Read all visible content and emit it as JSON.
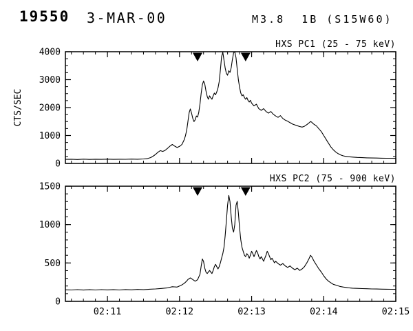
{
  "header": {
    "event_number": "19550",
    "date": "3-MAR-00",
    "flare_class": "M3.8  1B (S15W60)"
  },
  "colors": {
    "foreground": "#000000",
    "background": "#ffffff"
  },
  "chart_data": [
    {
      "type": "line",
      "title": "HXS PC1 (25 - 75 keV)",
      "ylabel": "CTS/SEC",
      "ylim": [
        0,
        4000
      ],
      "yticks": [
        0,
        1000,
        2000,
        3000,
        4000
      ],
      "y_minor_step": 250,
      "xlim": [
        25,
        300
      ],
      "x_minor_step": 10,
      "xticks": [
        {
          "t": 60,
          "label": "02:11"
        },
        {
          "t": 120,
          "label": "02:12"
        },
        {
          "t": 180,
          "label": "02:13"
        },
        {
          "t": 240,
          "label": "02:14"
        },
        {
          "t": 300,
          "label": "02:15"
        }
      ],
      "markers_t": [
        135,
        175
      ],
      "color": "#000000",
      "points": [
        [
          25,
          145
        ],
        [
          30,
          150
        ],
        [
          35,
          140
        ],
        [
          40,
          152
        ],
        [
          45,
          143
        ],
        [
          50,
          150
        ],
        [
          55,
          145
        ],
        [
          60,
          152
        ],
        [
          65,
          146
        ],
        [
          70,
          150
        ],
        [
          75,
          148
        ],
        [
          80,
          155
        ],
        [
          85,
          150
        ],
        [
          90,
          160
        ],
        [
          93,
          170
        ],
        [
          96,
          210
        ],
        [
          98,
          260
        ],
        [
          100,
          320
        ],
        [
          102,
          400
        ],
        [
          104,
          460
        ],
        [
          106,
          430
        ],
        [
          108,
          470
        ],
        [
          110,
          540
        ],
        [
          112,
          620
        ],
        [
          114,
          680
        ],
        [
          116,
          620
        ],
        [
          118,
          570
        ],
        [
          120,
          610
        ],
        [
          122,
          680
        ],
        [
          124,
          860
        ],
        [
          125,
          1000
        ],
        [
          126,
          1200
        ],
        [
          127,
          1500
        ],
        [
          128,
          1820
        ],
        [
          129,
          1950
        ],
        [
          130,
          1800
        ],
        [
          131,
          1620
        ],
        [
          132,
          1500
        ],
        [
          133,
          1560
        ],
        [
          134,
          1700
        ],
        [
          135,
          1660
        ],
        [
          136,
          1820
        ],
        [
          137,
          2120
        ],
        [
          138,
          2500
        ],
        [
          139,
          2820
        ],
        [
          140,
          2950
        ],
        [
          141,
          2840
        ],
        [
          142,
          2600
        ],
        [
          143,
          2400
        ],
        [
          144,
          2300
        ],
        [
          145,
          2420
        ],
        [
          146,
          2350
        ],
        [
          147,
          2300
        ],
        [
          148,
          2420
        ],
        [
          149,
          2520
        ],
        [
          150,
          2460
        ],
        [
          151,
          2560
        ],
        [
          152,
          2700
        ],
        [
          153,
          2920
        ],
        [
          154,
          3350
        ],
        [
          155,
          3820
        ],
        [
          156,
          3980
        ],
        [
          157,
          3700
        ],
        [
          158,
          3420
        ],
        [
          159,
          3220
        ],
        [
          160,
          3160
        ],
        [
          161,
          3320
        ],
        [
          162,
          3260
        ],
        [
          163,
          3430
        ],
        [
          164,
          3720
        ],
        [
          165,
          3960
        ],
        [
          166,
          4000
        ],
        [
          167,
          3780
        ],
        [
          168,
          3380
        ],
        [
          169,
          3000
        ],
        [
          170,
          2720
        ],
        [
          171,
          2520
        ],
        [
          172,
          2420
        ],
        [
          173,
          2460
        ],
        [
          174,
          2360
        ],
        [
          175,
          2300
        ],
        [
          176,
          2360
        ],
        [
          177,
          2260
        ],
        [
          178,
          2200
        ],
        [
          179,
          2260
        ],
        [
          180,
          2160
        ],
        [
          182,
          2060
        ],
        [
          184,
          2120
        ],
        [
          186,
          1960
        ],
        [
          188,
          1900
        ],
        [
          190,
          1960
        ],
        [
          192,
          1860
        ],
        [
          194,
          1800
        ],
        [
          196,
          1860
        ],
        [
          198,
          1760
        ],
        [
          200,
          1700
        ],
        [
          202,
          1650
        ],
        [
          204,
          1710
        ],
        [
          206,
          1610
        ],
        [
          208,
          1550
        ],
        [
          210,
          1510
        ],
        [
          212,
          1460
        ],
        [
          214,
          1410
        ],
        [
          216,
          1380
        ],
        [
          218,
          1350
        ],
        [
          220,
          1320
        ],
        [
          222,
          1300
        ],
        [
          224,
          1330
        ],
        [
          226,
          1390
        ],
        [
          228,
          1460
        ],
        [
          229,
          1500
        ],
        [
          230,
          1480
        ],
        [
          231,
          1430
        ],
        [
          232,
          1400
        ],
        [
          234,
          1340
        ],
        [
          236,
          1240
        ],
        [
          238,
          1140
        ],
        [
          240,
          1000
        ],
        [
          242,
          860
        ],
        [
          244,
          720
        ],
        [
          246,
          590
        ],
        [
          248,
          490
        ],
        [
          250,
          410
        ],
        [
          252,
          350
        ],
        [
          254,
          305
        ],
        [
          256,
          275
        ],
        [
          258,
          255
        ],
        [
          260,
          242
        ],
        [
          264,
          226
        ],
        [
          268,
          215
        ],
        [
          272,
          207
        ],
        [
          276,
          201
        ],
        [
          280,
          196
        ],
        [
          284,
          192
        ],
        [
          288,
          188
        ],
        [
          292,
          186
        ],
        [
          296,
          184
        ],
        [
          300,
          183
        ]
      ]
    },
    {
      "type": "line",
      "title": "HXS PC2 (75 - 900 keV)",
      "ylabel": "",
      "ylim": [
        0,
        1500
      ],
      "yticks": [
        0,
        500,
        1000,
        1500
      ],
      "y_minor_step": 100,
      "xlim": [
        25,
        300
      ],
      "x_minor_step": 10,
      "xticks": [
        {
          "t": 60,
          "label": "02:11"
        },
        {
          "t": 120,
          "label": "02:12"
        },
        {
          "t": 180,
          "label": "02:13"
        },
        {
          "t": 240,
          "label": "02:14"
        },
        {
          "t": 300,
          "label": "02:15"
        }
      ],
      "markers_t": [
        135,
        175
      ],
      "color": "#000000",
      "points": [
        [
          25,
          150
        ],
        [
          30,
          148
        ],
        [
          35,
          153
        ],
        [
          40,
          147
        ],
        [
          45,
          152
        ],
        [
          50,
          148
        ],
        [
          55,
          153
        ],
        [
          60,
          149
        ],
        [
          65,
          152
        ],
        [
          70,
          148
        ],
        [
          75,
          154
        ],
        [
          80,
          150
        ],
        [
          85,
          155
        ],
        [
          90,
          152
        ],
        [
          95,
          158
        ],
        [
          100,
          162
        ],
        [
          105,
          168
        ],
        [
          110,
          176
        ],
        [
          114,
          190
        ],
        [
          118,
          186
        ],
        [
          120,
          200
        ],
        [
          122,
          215
        ],
        [
          124,
          235
        ],
        [
          125,
          250
        ],
        [
          126,
          265
        ],
        [
          127,
          285
        ],
        [
          129,
          305
        ],
        [
          131,
          285
        ],
        [
          133,
          262
        ],
        [
          135,
          282
        ],
        [
          137,
          352
        ],
        [
          138,
          455
        ],
        [
          139,
          552
        ],
        [
          140,
          520
        ],
        [
          141,
          432
        ],
        [
          142,
          382
        ],
        [
          143,
          362
        ],
        [
          144,
          382
        ],
        [
          145,
          402
        ],
        [
          146,
          382
        ],
        [
          147,
          362
        ],
        [
          148,
          402
        ],
        [
          149,
          452
        ],
        [
          150,
          482
        ],
        [
          151,
          452
        ],
        [
          152,
          422
        ],
        [
          153,
          452
        ],
        [
          154,
          502
        ],
        [
          155,
          562
        ],
        [
          156,
          622
        ],
        [
          157,
          702
        ],
        [
          158,
          852
        ],
        [
          159,
          1052
        ],
        [
          160,
          1252
        ],
        [
          161,
          1380
        ],
        [
          162,
          1300
        ],
        [
          163,
          1102
        ],
        [
          164,
          952
        ],
        [
          165,
          902
        ],
        [
          166,
          1002
        ],
        [
          167,
          1252
        ],
        [
          168,
          1302
        ],
        [
          169,
          1152
        ],
        [
          170,
          952
        ],
        [
          171,
          802
        ],
        [
          172,
          702
        ],
        [
          173,
          652
        ],
        [
          174,
          602
        ],
        [
          175,
          582
        ],
        [
          176,
          622
        ],
        [
          177,
          602
        ],
        [
          178,
          562
        ],
        [
          179,
          602
        ],
        [
          180,
          652
        ],
        [
          181,
          622
        ],
        [
          182,
          582
        ],
        [
          183,
          622
        ],
        [
          184,
          662
        ],
        [
          185,
          632
        ],
        [
          186,
          582
        ],
        [
          187,
          552
        ],
        [
          188,
          582
        ],
        [
          189,
          552
        ],
        [
          190,
          522
        ],
        [
          191,
          562
        ],
        [
          192,
          602
        ],
        [
          193,
          652
        ],
        [
          194,
          622
        ],
        [
          195,
          582
        ],
        [
          196,
          542
        ],
        [
          197,
          562
        ],
        [
          198,
          532
        ],
        [
          199,
          502
        ],
        [
          200,
          522
        ],
        [
          202,
          492
        ],
        [
          204,
          472
        ],
        [
          206,
          492
        ],
        [
          208,
          462
        ],
        [
          210,
          442
        ],
        [
          212,
          462
        ],
        [
          214,
          432
        ],
        [
          216,
          412
        ],
        [
          218,
          432
        ],
        [
          220,
          402
        ],
        [
          222,
          422
        ],
        [
          224,
          452
        ],
        [
          226,
          502
        ],
        [
          228,
          562
        ],
        [
          229,
          600
        ],
        [
          230,
          582
        ],
        [
          232,
          522
        ],
        [
          234,
          472
        ],
        [
          236,
          422
        ],
        [
          238,
          382
        ],
        [
          240,
          332
        ],
        [
          242,
          292
        ],
        [
          244,
          262
        ],
        [
          246,
          242
        ],
        [
          248,
          222
        ],
        [
          250,
          212
        ],
        [
          252,
          202
        ],
        [
          254,
          192
        ],
        [
          256,
          187
        ],
        [
          258,
          182
        ],
        [
          260,
          177
        ],
        [
          264,
          172
        ],
        [
          268,
          169
        ],
        [
          272,
          166
        ],
        [
          276,
          164
        ],
        [
          280,
          162
        ],
        [
          284,
          161
        ],
        [
          288,
          159
        ],
        [
          292,
          158
        ],
        [
          296,
          157
        ],
        [
          300,
          156
        ]
      ]
    }
  ]
}
